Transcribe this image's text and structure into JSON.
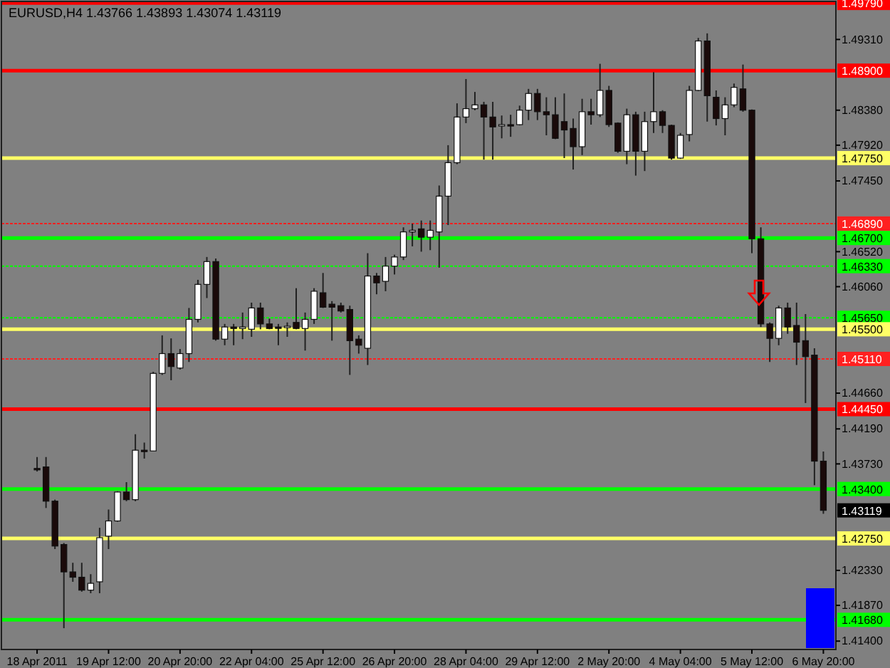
{
  "chart_data": {
    "type": "candlestick",
    "title": "EURUSD,H4  1.43766 1.43893 1.43074 1.43119",
    "categories": [
      "18 Apr 2011",
      null,
      null,
      null,
      null,
      null,
      null,
      null,
      "19 Apr 12:00",
      null,
      null,
      null,
      null,
      null,
      null,
      null,
      "20 Apr 20:00",
      null,
      null,
      null,
      null,
      null,
      null,
      null,
      "22 Apr 04:00",
      null,
      null,
      null,
      null,
      null,
      null,
      null,
      "25 Apr 12:00",
      null,
      null,
      null,
      null,
      null,
      null,
      null,
      "26 Apr 20:00",
      null,
      null,
      null,
      null,
      null,
      null,
      null,
      "28 Apr 04:00",
      null,
      null,
      null,
      null,
      null,
      null,
      null,
      "29 Apr 12:00",
      null,
      null,
      null,
      null,
      null,
      null,
      null,
      "2 May 20:00",
      null,
      null,
      null,
      null,
      null,
      null,
      null,
      "4 May 04:00",
      null,
      null,
      null,
      null,
      null,
      null,
      null,
      "5 May 12:00",
      null,
      null,
      null,
      null,
      null,
      null,
      null,
      "6 May 20:00"
    ],
    "ohlc": [
      [
        1.4367,
        1.4382,
        1.4363,
        1.4366
      ],
      [
        1.4369,
        1.4382,
        1.4315,
        1.4324
      ],
      [
        1.4324,
        1.4326,
        1.4261,
        1.4265
      ],
      [
        1.4267,
        1.4269,
        1.4157,
        1.4231
      ],
      [
        1.4231,
        1.4243,
        1.4218,
        1.4224
      ],
      [
        1.4224,
        1.4243,
        1.4205,
        1.4207
      ],
      [
        1.4207,
        1.4228,
        1.4203,
        1.4216
      ],
      [
        1.4218,
        1.4289,
        1.4203,
        1.4276
      ],
      [
        1.4278,
        1.4313,
        1.4261,
        1.4298
      ],
      [
        1.4298,
        1.4337,
        1.4297,
        1.4336
      ],
      [
        1.4336,
        1.4349,
        1.4324,
        1.4326
      ],
      [
        1.4326,
        1.4412,
        1.4324,
        1.4391
      ],
      [
        1.4391,
        1.4401,
        1.438,
        1.439
      ],
      [
        1.439,
        1.4494,
        1.439,
        1.4492
      ],
      [
        1.4492,
        1.4542,
        1.449,
        1.4518
      ],
      [
        1.4518,
        1.4538,
        1.4483,
        1.4501
      ],
      [
        1.4499,
        1.4524,
        1.4497,
        1.4518
      ],
      [
        1.4518,
        1.4578,
        1.4507,
        1.4563
      ],
      [
        1.4563,
        1.4615,
        1.4559,
        1.4609
      ],
      [
        1.4609,
        1.4645,
        1.4591,
        1.4639
      ],
      [
        1.4639,
        1.4643,
        1.4535,
        1.4537
      ],
      [
        1.4537,
        1.4557,
        1.4529,
        1.4553
      ],
      [
        1.4553,
        1.4557,
        1.4529,
        1.4551
      ],
      [
        1.4551,
        1.4572,
        1.4537,
        1.4553
      ],
      [
        1.455,
        1.4585,
        1.454,
        1.4578
      ],
      [
        1.4578,
        1.4585,
        1.455,
        1.4557
      ],
      [
        1.4557,
        1.4564,
        1.455,
        1.4551
      ],
      [
        1.4553,
        1.4557,
        1.4529,
        1.4552
      ],
      [
        1.4553,
        1.4559,
        1.454,
        1.4554
      ],
      [
        1.4559,
        1.4604,
        1.455,
        1.4551
      ],
      [
        1.4551,
        1.4572,
        1.4522,
        1.4563
      ],
      [
        1.4563,
        1.4604,
        1.4557,
        1.46
      ],
      [
        1.4598,
        1.4624,
        1.4578,
        1.4579
      ],
      [
        1.4583,
        1.4587,
        1.4535,
        1.4579
      ],
      [
        1.4581,
        1.4585,
        1.4572,
        1.4574
      ],
      [
        1.4576,
        1.4581,
        1.449,
        1.4535
      ],
      [
        1.4537,
        1.4542,
        1.4518,
        1.4529
      ],
      [
        1.4525,
        1.465,
        1.4503,
        1.462
      ],
      [
        1.462,
        1.4624,
        1.4596,
        1.4611
      ],
      [
        1.4613,
        1.4645,
        1.46,
        1.4633
      ],
      [
        1.4633,
        1.4648,
        1.4622,
        1.4645
      ],
      [
        1.4645,
        1.4684,
        1.4641,
        1.4678
      ],
      [
        1.4678,
        1.4689,
        1.4659,
        1.468
      ],
      [
        1.4682,
        1.4693,
        1.4652,
        1.4671
      ],
      [
        1.4671,
        1.4693,
        1.4654,
        1.468
      ],
      [
        1.4678,
        1.4739,
        1.4631,
        1.4725
      ],
      [
        1.4725,
        1.4792,
        1.4687,
        1.4769
      ],
      [
        1.4769,
        1.4847,
        1.4767,
        1.4829
      ],
      [
        1.4829,
        1.4879,
        1.4821,
        1.484
      ],
      [
        1.484,
        1.4862,
        1.4838,
        1.4845
      ],
      [
        1.4845,
        1.4849,
        1.4773,
        1.4829
      ],
      [
        1.4829,
        1.4849,
        1.4773,
        1.4816
      ],
      [
        1.4818,
        1.4831,
        1.4801,
        1.4819
      ],
      [
        1.4819,
        1.4832,
        1.4803,
        1.4818
      ],
      [
        1.4819,
        1.4844,
        1.4818,
        1.4838
      ],
      [
        1.4838,
        1.4866,
        1.4825,
        1.486
      ],
      [
        1.486,
        1.4866,
        1.4825,
        1.4836
      ],
      [
        1.4836,
        1.4855,
        1.4805,
        1.4832
      ],
      [
        1.4832,
        1.4855,
        1.48,
        1.4801
      ],
      [
        1.4823,
        1.486,
        1.4775,
        1.4812
      ],
      [
        1.4814,
        1.4827,
        1.476,
        1.479
      ],
      [
        1.479,
        1.4853,
        1.4779,
        1.4836
      ],
      [
        1.4836,
        1.4853,
        1.4819,
        1.4832
      ],
      [
        1.4832,
        1.4899,
        1.4829,
        1.4864
      ],
      [
        1.4864,
        1.487,
        1.4816,
        1.4819
      ],
      [
        1.4821,
        1.4822,
        1.4782,
        1.4784
      ],
      [
        1.4784,
        1.484,
        1.4767,
        1.4832
      ],
      [
        1.4832,
        1.4836,
        1.4752,
        1.4784
      ],
      [
        1.4784,
        1.4836,
        1.4758,
        1.4823
      ],
      [
        1.4823,
        1.4888,
        1.4808,
        1.4836
      ],
      [
        1.4836,
        1.4838,
        1.4808,
        1.4818
      ],
      [
        1.4818,
        1.4819,
        1.4773,
        1.4775
      ],
      [
        1.4775,
        1.4808,
        1.4774,
        1.4805
      ],
      [
        1.4806,
        1.487,
        1.4797,
        1.4864
      ],
      [
        1.4864,
        1.4933,
        1.4863,
        1.4929
      ],
      [
        1.4929,
        1.4939,
        1.4823,
        1.4857
      ],
      [
        1.4855,
        1.4864,
        1.4818,
        1.4827
      ],
      [
        1.4827,
        1.4855,
        1.4805,
        1.4845
      ],
      [
        1.4845,
        1.4873,
        1.4842,
        1.4868
      ],
      [
        1.4866,
        1.4898,
        1.4836,
        1.4838
      ],
      [
        1.4838,
        1.4839,
        1.465,
        1.4669
      ],
      [
        1.4669,
        1.4684,
        1.4553,
        1.4557
      ],
      [
        1.4557,
        1.4559,
        1.4507,
        1.4538
      ],
      [
        1.4538,
        1.4581,
        1.4529,
        1.4578
      ],
      [
        1.4578,
        1.4585,
        1.4544,
        1.4553
      ],
      [
        1.4555,
        1.4585,
        1.4503,
        1.4533
      ],
      [
        1.4535,
        1.457,
        1.4453,
        1.4514
      ],
      [
        1.4516,
        1.4525,
        1.4345,
        1.43766
      ],
      [
        1.43766,
        1.43893,
        1.43074,
        1.43119
      ]
    ],
    "ylim": [
      1.4129,
      1.4981
    ],
    "yticks": [
      {
        "value": 1.4931,
        "label": "1.49310"
      },
      {
        "value": 1.4838,
        "label": "1.48380"
      },
      {
        "value": 1.4792,
        "label": "1.47920"
      },
      {
        "value": 1.4745,
        "label": "1.47450"
      },
      {
        "value": 1.4652,
        "label": "1.46520"
      },
      {
        "value": 1.4606,
        "label": "1.46060"
      },
      {
        "value": 1.4466,
        "label": "1.44660"
      },
      {
        "value": 1.4419,
        "label": "1.44190"
      },
      {
        "value": 1.4373,
        "label": "1.43730"
      },
      {
        "value": 1.4233,
        "label": "1.42330"
      },
      {
        "value": 1.4187,
        "label": "1.41870"
      },
      {
        "value": 1.414,
        "label": "1.41400"
      }
    ],
    "ref_lines": [
      {
        "axis": "y",
        "value": 1.4979,
        "label": "1.49790",
        "color": "#ff0000",
        "line_style": "solid"
      },
      {
        "axis": "y",
        "value": 1.489,
        "label": "1.48900",
        "color": "#ff0000",
        "line_style": "solid"
      },
      {
        "axis": "y",
        "value": 1.4775,
        "label": "1.47750",
        "color": "#ffff66",
        "line_style": "solid"
      },
      {
        "axis": "y",
        "value": 1.4689,
        "label": "1.46890",
        "color": "#ff2020",
        "line_style": "dotted"
      },
      {
        "axis": "y",
        "value": 1.467,
        "label": "1.46700",
        "color": "#00ff00",
        "line_style": "solid"
      },
      {
        "axis": "y",
        "value": 1.4633,
        "label": "1.46330",
        "color": "#00ff00",
        "line_style": "dotted"
      },
      {
        "axis": "y",
        "value": 1.4565,
        "label": "1.45650",
        "color": "#00ff00",
        "line_style": "dotted"
      },
      {
        "axis": "y",
        "value": 1.455,
        "label": "1.45500",
        "color": "#ffff66",
        "line_style": "solid"
      },
      {
        "axis": "y",
        "value": 1.4511,
        "label": "1.45110",
        "color": "#ff2020",
        "line_style": "dotted"
      },
      {
        "axis": "y",
        "value": 1.4445,
        "label": "1.44450",
        "color": "#ff0000",
        "line_style": "solid"
      },
      {
        "axis": "y",
        "value": 1.434,
        "label": "1.43400",
        "color": "#00ff00",
        "line_style": "solid"
      },
      {
        "axis": "y",
        "value": 1.4275,
        "label": "1.42750",
        "color": "#ffff66",
        "line_style": "solid"
      },
      {
        "axis": "y",
        "value": 1.4168,
        "label": "1.41680",
        "color": "#00ff00",
        "line_style": "solid"
      }
    ],
    "annotations": [
      "1.43119"
    ],
    "grid": false
  }
}
